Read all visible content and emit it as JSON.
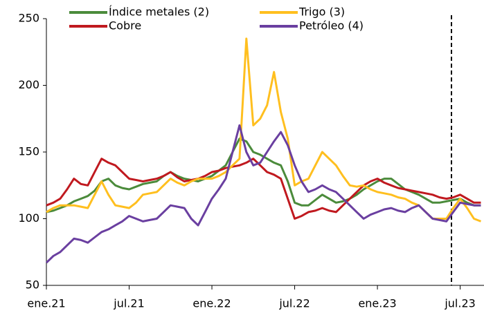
{
  "chart_data": {
    "type": "line",
    "categories": [
      "ene.21",
      null,
      null,
      null,
      null,
      null,
      null,
      null,
      null,
      null,
      null,
      null,
      "jul.21",
      null,
      null,
      null,
      null,
      null,
      null,
      null,
      null,
      null,
      null,
      null,
      "ene.22",
      null,
      null,
      null,
      null,
      null,
      null,
      null,
      null,
      null,
      null,
      null,
      "jul.22",
      null,
      null,
      null,
      null,
      null,
      null,
      null,
      null,
      null,
      null,
      null,
      "ene.23",
      null,
      null,
      null,
      null,
      null,
      null,
      null,
      null,
      null,
      null,
      null,
      "jul.23",
      null,
      null,
      null
    ],
    "series": [
      {
        "name": "Índice metales (2)",
        "color": "#4b8b3b",
        "values": [
          105,
          106,
          108,
          110,
          113,
          115,
          117,
          121,
          128,
          130,
          125,
          123,
          122,
          124,
          126,
          127,
          128,
          132,
          135,
          132,
          130,
          129,
          128,
          130,
          132,
          136,
          140,
          150,
          160,
          158,
          150,
          148,
          145,
          142,
          140,
          128,
          112,
          110,
          110,
          114,
          118,
          115,
          112,
          113,
          115,
          118,
          122,
          125,
          128,
          130,
          130,
          126,
          122,
          120,
          118,
          115,
          112,
          112,
          113,
          114,
          115,
          112,
          110,
          110
        ]
      },
      {
        "name": "Cobre",
        "color": "#c0191f",
        "values": [
          110,
          112,
          115,
          122,
          130,
          126,
          125,
          135,
          145,
          142,
          140,
          135,
          130,
          129,
          128,
          129,
          130,
          132,
          135,
          131,
          128,
          129,
          130,
          132,
          135,
          136,
          138,
          139,
          140,
          142,
          145,
          140,
          135,
          133,
          130,
          115,
          100,
          102,
          105,
          106,
          108,
          106,
          105,
          110,
          115,
          120,
          125,
          128,
          130,
          127,
          125,
          123,
          122,
          121,
          120,
          119,
          118,
          116,
          115,
          116,
          118,
          115,
          112,
          112
        ]
      },
      {
        "name": "Trigo (3)",
        "color": "#ffbf1f",
        "values": [
          105,
          108,
          110,
          110,
          110,
          109,
          108,
          118,
          128,
          118,
          110,
          109,
          108,
          112,
          118,
          119,
          120,
          125,
          130,
          127,
          125,
          128,
          130,
          130,
          130,
          132,
          135,
          140,
          145,
          235,
          170,
          175,
          185,
          210,
          180,
          160,
          125,
          128,
          130,
          140,
          150,
          145,
          140,
          132,
          125,
          124,
          125,
          122,
          120,
          119,
          118,
          116,
          115,
          112,
          110,
          105,
          100,
          100,
          100,
          108,
          115,
          108,
          100,
          98
        ]
      },
      {
        "name": "Petróleo (4)",
        "color": "#6a3fa0",
        "values": [
          67,
          72,
          75,
          80,
          85,
          84,
          82,
          86,
          90,
          92,
          95,
          98,
          102,
          100,
          98,
          99,
          100,
          105,
          110,
          109,
          108,
          100,
          95,
          105,
          115,
          122,
          130,
          150,
          170,
          150,
          140,
          142,
          150,
          158,
          165,
          155,
          140,
          128,
          120,
          122,
          125,
          122,
          120,
          115,
          110,
          105,
          100,
          103,
          105,
          107,
          108,
          106,
          105,
          108,
          110,
          105,
          100,
          99,
          98,
          105,
          112,
          111,
          110,
          110
        ]
      }
    ],
    "ylim": [
      50,
      250
    ],
    "yticks": [
      50,
      100,
      150,
      200,
      250
    ],
    "grid": false
  }
}
